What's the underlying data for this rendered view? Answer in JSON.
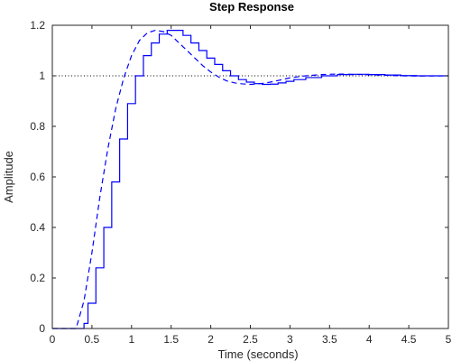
{
  "chart_data": {
    "type": "line",
    "title": "Step Response",
    "xlabel": "Time (seconds)",
    "ylabel": "Amplitude",
    "xlim": [
      0,
      5
    ],
    "ylim": [
      0,
      1.2
    ],
    "x_ticks": [
      0,
      0.5,
      1,
      1.5,
      2,
      2.5,
      3,
      3.5,
      4,
      4.5,
      5
    ],
    "y_ticks": [
      0,
      0.2,
      0.4,
      0.6,
      0.8,
      1,
      1.2
    ],
    "x_tick_labels": [
      "0",
      "0.5",
      "1",
      "1.5",
      "2",
      "2.5",
      "3",
      "3.5",
      "4",
      "4.5",
      "5"
    ],
    "y_tick_labels": [
      "0",
      "0.2",
      "0.4",
      "0.6",
      "0.8",
      "1",
      "1.2"
    ],
    "grid": false,
    "reference_line": {
      "y": 1,
      "style": "dotted",
      "color": "#000000"
    },
    "series": [
      {
        "style": "dashed",
        "color": "#0000ff",
        "points": [
          [
            0,
            0
          ],
          [
            0.3,
            0
          ],
          [
            0.4,
            0.11
          ],
          [
            0.5,
            0.3
          ],
          [
            0.6,
            0.52
          ],
          [
            0.7,
            0.71
          ],
          [
            0.8,
            0.87
          ],
          [
            0.9,
            0.99
          ],
          [
            1.0,
            1.08
          ],
          [
            1.1,
            1.14
          ],
          [
            1.2,
            1.17
          ],
          [
            1.3,
            1.18
          ],
          [
            1.4,
            1.175
          ],
          [
            1.5,
            1.16
          ],
          [
            1.6,
            1.13
          ],
          [
            1.7,
            1.1
          ],
          [
            1.8,
            1.07
          ],
          [
            1.9,
            1.04
          ],
          [
            2.0,
            1.015
          ],
          [
            2.1,
            0.995
          ],
          [
            2.2,
            0.98
          ],
          [
            2.3,
            0.972
          ],
          [
            2.4,
            0.968
          ],
          [
            2.5,
            0.966
          ],
          [
            2.6,
            0.968
          ],
          [
            2.7,
            0.972
          ],
          [
            2.8,
            0.978
          ],
          [
            2.9,
            0.985
          ],
          [
            3.0,
            0.992
          ],
          [
            3.2,
            1.0
          ],
          [
            3.4,
            1.005
          ],
          [
            3.6,
            1.007
          ],
          [
            3.8,
            1.006
          ],
          [
            4.0,
            1.004
          ],
          [
            4.2,
            1.002
          ],
          [
            4.4,
            1.0
          ],
          [
            4.6,
            0.999
          ],
          [
            5.0,
            1.0
          ]
        ]
      },
      {
        "style": "stairs",
        "color": "#0000ff",
        "points": [
          [
            0,
            0
          ],
          [
            0.3,
            0
          ],
          [
            0.4,
            0.02
          ],
          [
            0.45,
            0.1
          ],
          [
            0.55,
            0.24
          ],
          [
            0.65,
            0.4
          ],
          [
            0.75,
            0.58
          ],
          [
            0.85,
            0.75
          ],
          [
            0.95,
            0.89
          ],
          [
            1.05,
            1.0
          ],
          [
            1.15,
            1.08
          ],
          [
            1.25,
            1.13
          ],
          [
            1.35,
            1.165
          ],
          [
            1.45,
            1.18
          ],
          [
            1.55,
            1.18
          ],
          [
            1.65,
            1.16
          ],
          [
            1.75,
            1.13
          ],
          [
            1.85,
            1.1
          ],
          [
            1.95,
            1.07
          ],
          [
            2.05,
            1.045
          ],
          [
            2.15,
            1.02
          ],
          [
            2.25,
            1.0
          ],
          [
            2.35,
            0.985
          ],
          [
            2.45,
            0.975
          ],
          [
            2.55,
            0.969
          ],
          [
            2.65,
            0.966
          ],
          [
            2.75,
            0.967
          ],
          [
            2.85,
            0.972
          ],
          [
            2.95,
            0.978
          ],
          [
            3.05,
            0.985
          ],
          [
            3.2,
            0.993
          ],
          [
            3.4,
            1.0
          ],
          [
            3.6,
            1.005
          ],
          [
            3.8,
            1.006
          ],
          [
            4.0,
            1.005
          ],
          [
            4.2,
            1.003
          ],
          [
            4.4,
            1.001
          ],
          [
            4.6,
            1.0
          ],
          [
            5.0,
            1.0
          ]
        ]
      }
    ]
  }
}
